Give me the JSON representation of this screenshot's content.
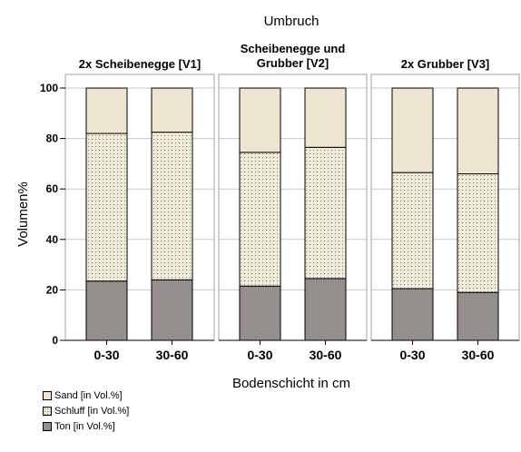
{
  "chart_data": {
    "type": "bar",
    "stacked": true,
    "title": "Umbruch",
    "ylabel": "Volumen%",
    "xlabel": "Bodenschicht in cm",
    "ylim": [
      0,
      100
    ],
    "yticks": [
      0,
      20,
      40,
      60,
      80,
      100
    ],
    "grid": true,
    "legend_position": "bottom-left",
    "categories": [
      "0-30",
      "30-60"
    ],
    "panels": [
      {
        "title_lines": [
          "2x Scheibenegge [V1]"
        ],
        "series": [
          {
            "name": "Ton [in Vol.%]",
            "values": [
              23.5,
              24
            ]
          },
          {
            "name": "Schluff [in Vol.%]",
            "values": [
              58.5,
              58.5
            ]
          },
          {
            "name": "Sand [in Vol.%]",
            "values": [
              18,
              17.5
            ]
          }
        ]
      },
      {
        "title_lines": [
          "Scheibenegge und",
          "Grubber [V2]"
        ],
        "series": [
          {
            "name": "Ton [in Vol.%]",
            "values": [
              21.5,
              24.5
            ]
          },
          {
            "name": "Schluff [in Vol.%]",
            "values": [
              53,
              52
            ]
          },
          {
            "name": "Sand [in Vol.%]",
            "values": [
              25.5,
              23.5
            ]
          }
        ]
      },
      {
        "title_lines": [
          "2x Grubber [V3]"
        ],
        "series": [
          {
            "name": "Ton [in Vol.%]",
            "values": [
              20.5,
              19
            ]
          },
          {
            "name": "Schluff [in Vol.%]",
            "values": [
              46,
              47
            ]
          },
          {
            "name": "Sand [in Vol.%]",
            "values": [
              33.5,
              34
            ]
          }
        ]
      }
    ],
    "colors": {
      "Ton [in Vol.%]": "#948e8c",
      "Schluff [in Vol.%]": "#f2ecdb",
      "Sand [in Vol.%]": "#ede5d0"
    }
  },
  "legend": [
    {
      "label": "Sand [in Vol.%]",
      "key": "Sand [in Vol.%]"
    },
    {
      "label": "Schluff [in Vol.%]",
      "key": "Schluff [in Vol.%]"
    },
    {
      "label": "Ton [in Vol.%]",
      "key": "Ton [in Vol.%]"
    }
  ]
}
